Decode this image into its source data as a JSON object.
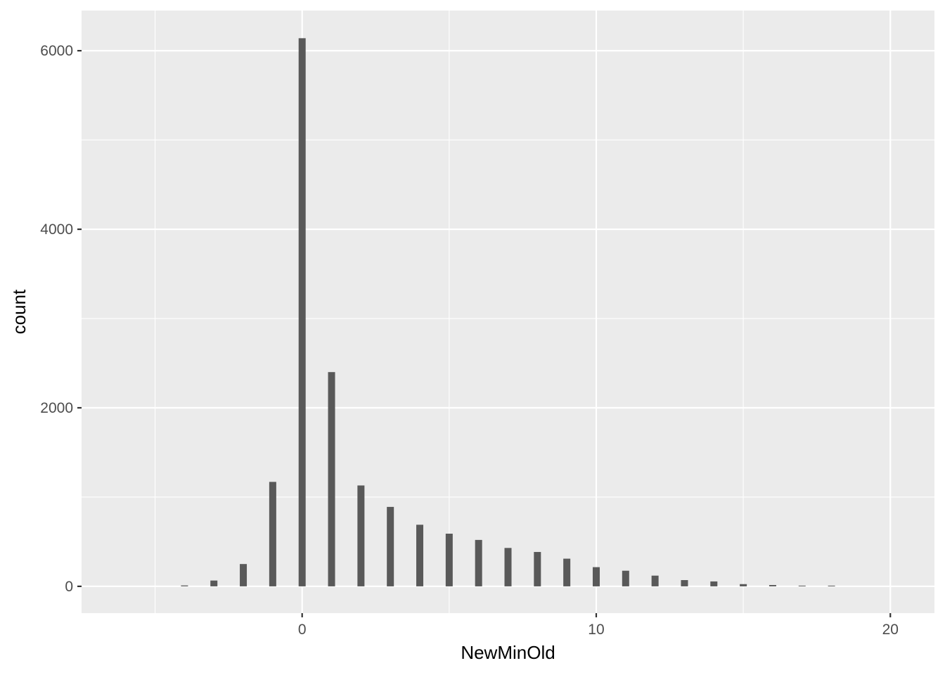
{
  "chart_data": {
    "type": "bar",
    "xlabel": "NewMinOld",
    "ylabel": "count",
    "xlim": [
      -7.5,
      21.5
    ],
    "ylim": [
      -300,
      6450
    ],
    "x_ticks": [
      0,
      10,
      20
    ],
    "y_ticks": [
      0,
      2000,
      4000,
      6000
    ],
    "grid": true,
    "bar_color": "#595959",
    "panel_color": "#ebebeb",
    "grid_color": "#ffffff",
    "bars": [
      {
        "x": -4,
        "y": 10
      },
      {
        "x": -3,
        "y": 65
      },
      {
        "x": -2,
        "y": 250
      },
      {
        "x": -1,
        "y": 1170
      },
      {
        "x": 0,
        "y": 6140
      },
      {
        "x": 1,
        "y": 2400
      },
      {
        "x": 2,
        "y": 1130
      },
      {
        "x": 3,
        "y": 890
      },
      {
        "x": 4,
        "y": 690
      },
      {
        "x": 5,
        "y": 590
      },
      {
        "x": 6,
        "y": 520
      },
      {
        "x": 7,
        "y": 430
      },
      {
        "x": 8,
        "y": 385
      },
      {
        "x": 9,
        "y": 310
      },
      {
        "x": 10,
        "y": 215
      },
      {
        "x": 11,
        "y": 175
      },
      {
        "x": 12,
        "y": 120
      },
      {
        "x": 13,
        "y": 70
      },
      {
        "x": 14,
        "y": 55
      },
      {
        "x": 15,
        "y": 25
      },
      {
        "x": 16,
        "y": 15
      },
      {
        "x": 17,
        "y": 8
      },
      {
        "x": 18,
        "y": 5
      }
    ]
  }
}
